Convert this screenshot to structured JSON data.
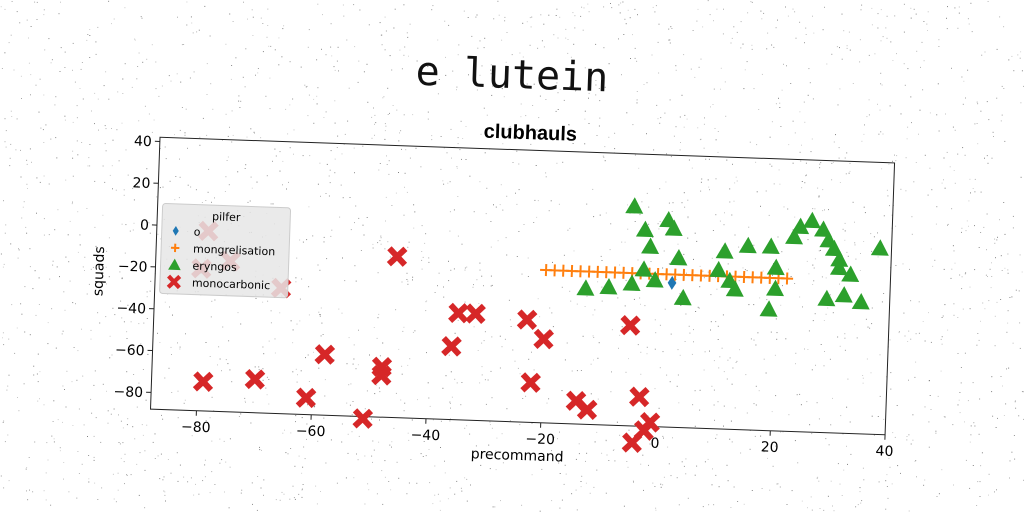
{
  "figure_title": "e lutein",
  "chart_data": {
    "type": "scatter",
    "title": "clubhauls",
    "xlabel": "precommand",
    "ylabel": "squads",
    "xlim": [
      -88,
      40
    ],
    "ylim": [
      -88,
      42
    ],
    "xticks": [
      -80,
      -60,
      -40,
      -20,
      0,
      20,
      40
    ],
    "yticks": [
      40,
      20,
      0,
      -20,
      -40,
      -60,
      -80
    ],
    "grid": false,
    "legend": {
      "title": "pilfer",
      "placement": "center-left"
    },
    "series": [
      {
        "name": "o",
        "marker": "diamond",
        "color": "#1f77b4",
        "points": [
          [
            2,
            -19
          ]
        ]
      },
      {
        "name": "mongrelisation",
        "marker": "plus",
        "color": "#ff7f0e",
        "points": [
          [
            -20,
            -15
          ],
          [
            -18.5,
            -15
          ],
          [
            -17,
            -15
          ],
          [
            -15.5,
            -15
          ],
          [
            -14,
            -15
          ],
          [
            -12.5,
            -15
          ],
          [
            -11,
            -15
          ],
          [
            -9.5,
            -15
          ],
          [
            -8,
            -15
          ],
          [
            -6.5,
            -15
          ],
          [
            -5,
            -15
          ],
          [
            -3.5,
            -15
          ],
          [
            -2,
            -15
          ],
          [
            -0.5,
            -15
          ],
          [
            1,
            -15
          ],
          [
            2.5,
            -15
          ],
          [
            4,
            -15
          ],
          [
            5.5,
            -15
          ],
          [
            7,
            -15
          ],
          [
            8.5,
            -15
          ],
          [
            10,
            -15
          ],
          [
            11.5,
            -15
          ],
          [
            13,
            -15
          ],
          [
            14.5,
            -15
          ],
          [
            16,
            -15
          ],
          [
            17.5,
            -15
          ],
          [
            19,
            -15
          ],
          [
            20.5,
            -15
          ],
          [
            22,
            -15
          ]
        ]
      },
      {
        "name": "eryngos",
        "marker": "triangle",
        "color": "#2ca02c",
        "points": [
          [
            -5,
            17
          ],
          [
            -3,
            6
          ],
          [
            1,
            11
          ],
          [
            2,
            7
          ],
          [
            -2,
            -2
          ],
          [
            -3,
            -13
          ],
          [
            3,
            -7
          ],
          [
            -1,
            -18
          ],
          [
            -5,
            -20
          ],
          [
            -9,
            -22
          ],
          [
            -13,
            -23
          ],
          [
            4,
            -26
          ],
          [
            10,
            -12
          ],
          [
            11,
            -3
          ],
          [
            12,
            -17
          ],
          [
            13,
            -21
          ],
          [
            15,
            0
          ],
          [
            19,
            0
          ],
          [
            20,
            -10
          ],
          [
            20,
            -20
          ],
          [
            19,
            -30
          ],
          [
            23,
            5
          ],
          [
            24,
            10
          ],
          [
            26,
            13
          ],
          [
            28,
            9
          ],
          [
            29,
            4
          ],
          [
            30,
            0
          ],
          [
            31,
            -5
          ],
          [
            31,
            -9
          ],
          [
            33,
            -12
          ],
          [
            32,
            -22
          ],
          [
            29,
            -24
          ],
          [
            35,
            -25
          ],
          [
            38,
            1
          ]
        ]
      },
      {
        "name": "monocarbonic",
        "marker": "x",
        "color": "#d62728",
        "points": [
          [
            -79,
            -2
          ],
          [
            -80,
            -20
          ],
          [
            -75,
            -16
          ],
          [
            -66,
            -28
          ],
          [
            -46,
            -11
          ],
          [
            -35,
            -37
          ],
          [
            -32,
            -37
          ],
          [
            -36,
            -53
          ],
          [
            -23,
            -39
          ],
          [
            -20,
            -48
          ],
          [
            -5,
            -40
          ],
          [
            -58,
            -59
          ],
          [
            -48,
            -64
          ],
          [
            -48,
            -68
          ],
          [
            -79,
            -74
          ],
          [
            -70,
            -72
          ],
          [
            -61,
            -80
          ],
          [
            -51,
            -89
          ],
          [
            -22,
            -69
          ],
          [
            -14,
            -77
          ],
          [
            -12,
            -81
          ],
          [
            -3,
            -74
          ],
          [
            -1,
            -86
          ],
          [
            -2,
            -90
          ],
          [
            -4,
            -96
          ]
        ]
      }
    ]
  }
}
